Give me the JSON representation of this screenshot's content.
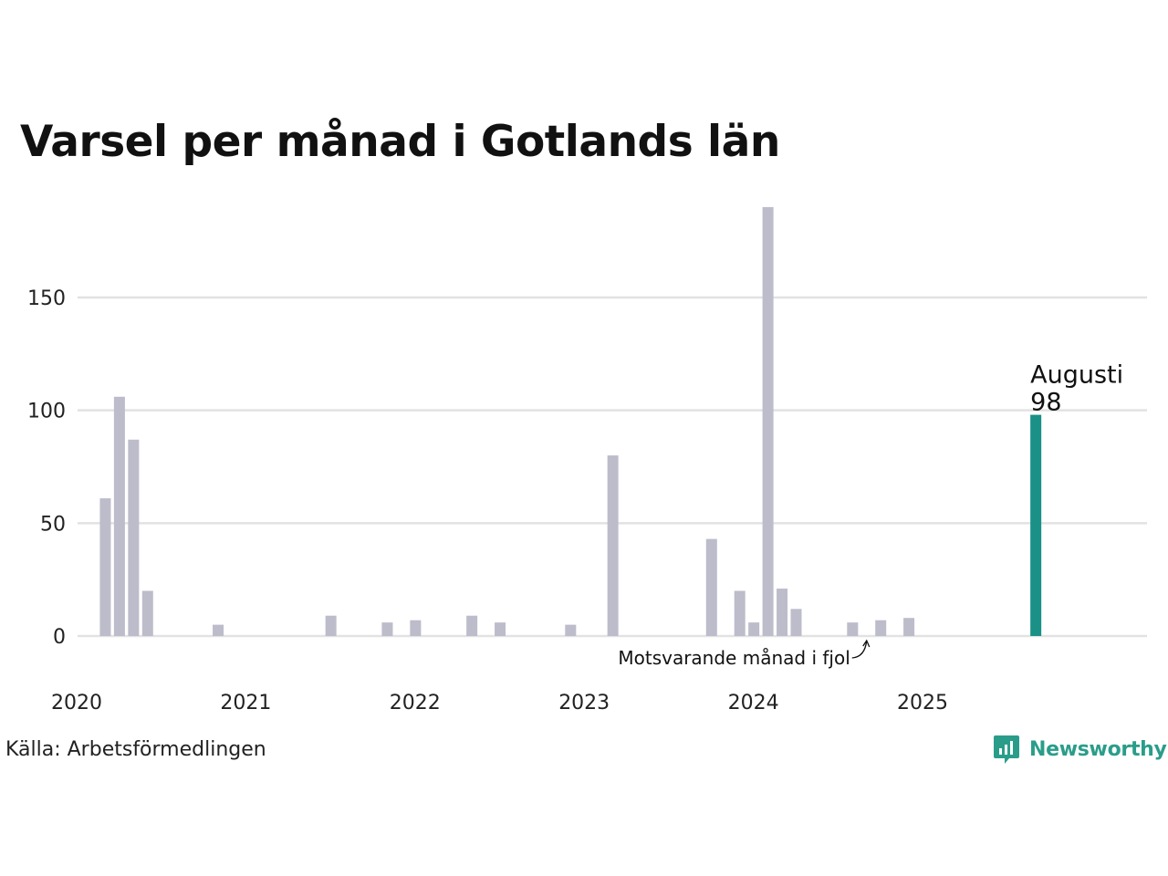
{
  "chart_data": {
    "type": "bar",
    "title": "Varsel per månad i Gotlands län",
    "source": "Källa: Arbetsförmedlingen",
    "brand": "Newsworthy",
    "ylim": [
      0,
      190
    ],
    "yticks": [
      0,
      50,
      100,
      150
    ],
    "xticks": [
      "2020",
      "2021",
      "2022",
      "2023",
      "2024",
      "2025"
    ],
    "start_month": "2020-01",
    "end_month": "2025-12",
    "grid": true,
    "colors": {
      "bar": "#bcbccb",
      "highlight": "#1a9086",
      "grid": "#e2e2e2",
      "brand": "#2a9d8a"
    },
    "highlight": {
      "month": "2025-08",
      "label": "Augusti",
      "value": 98
    },
    "comparison_note": "Motsvarande månad i fjol",
    "x": [
      "2020-02",
      "2020-03",
      "2020-04",
      "2020-05",
      "2020-06",
      "2020-10",
      "2021-06",
      "2021-10",
      "2021-12",
      "2022-04",
      "2022-06",
      "2022-11",
      "2023-02",
      "2023-09",
      "2023-11",
      "2023-12",
      "2024-01",
      "2024-02",
      "2024-03",
      "2024-07",
      "2024-09",
      "2024-11",
      "2025-08"
    ],
    "values": [
      61,
      106,
      87,
      20,
      0,
      5,
      9,
      6,
      7,
      9,
      6,
      5,
      80,
      43,
      20,
      6,
      190,
      21,
      12,
      6,
      7,
      8,
      98
    ]
  }
}
